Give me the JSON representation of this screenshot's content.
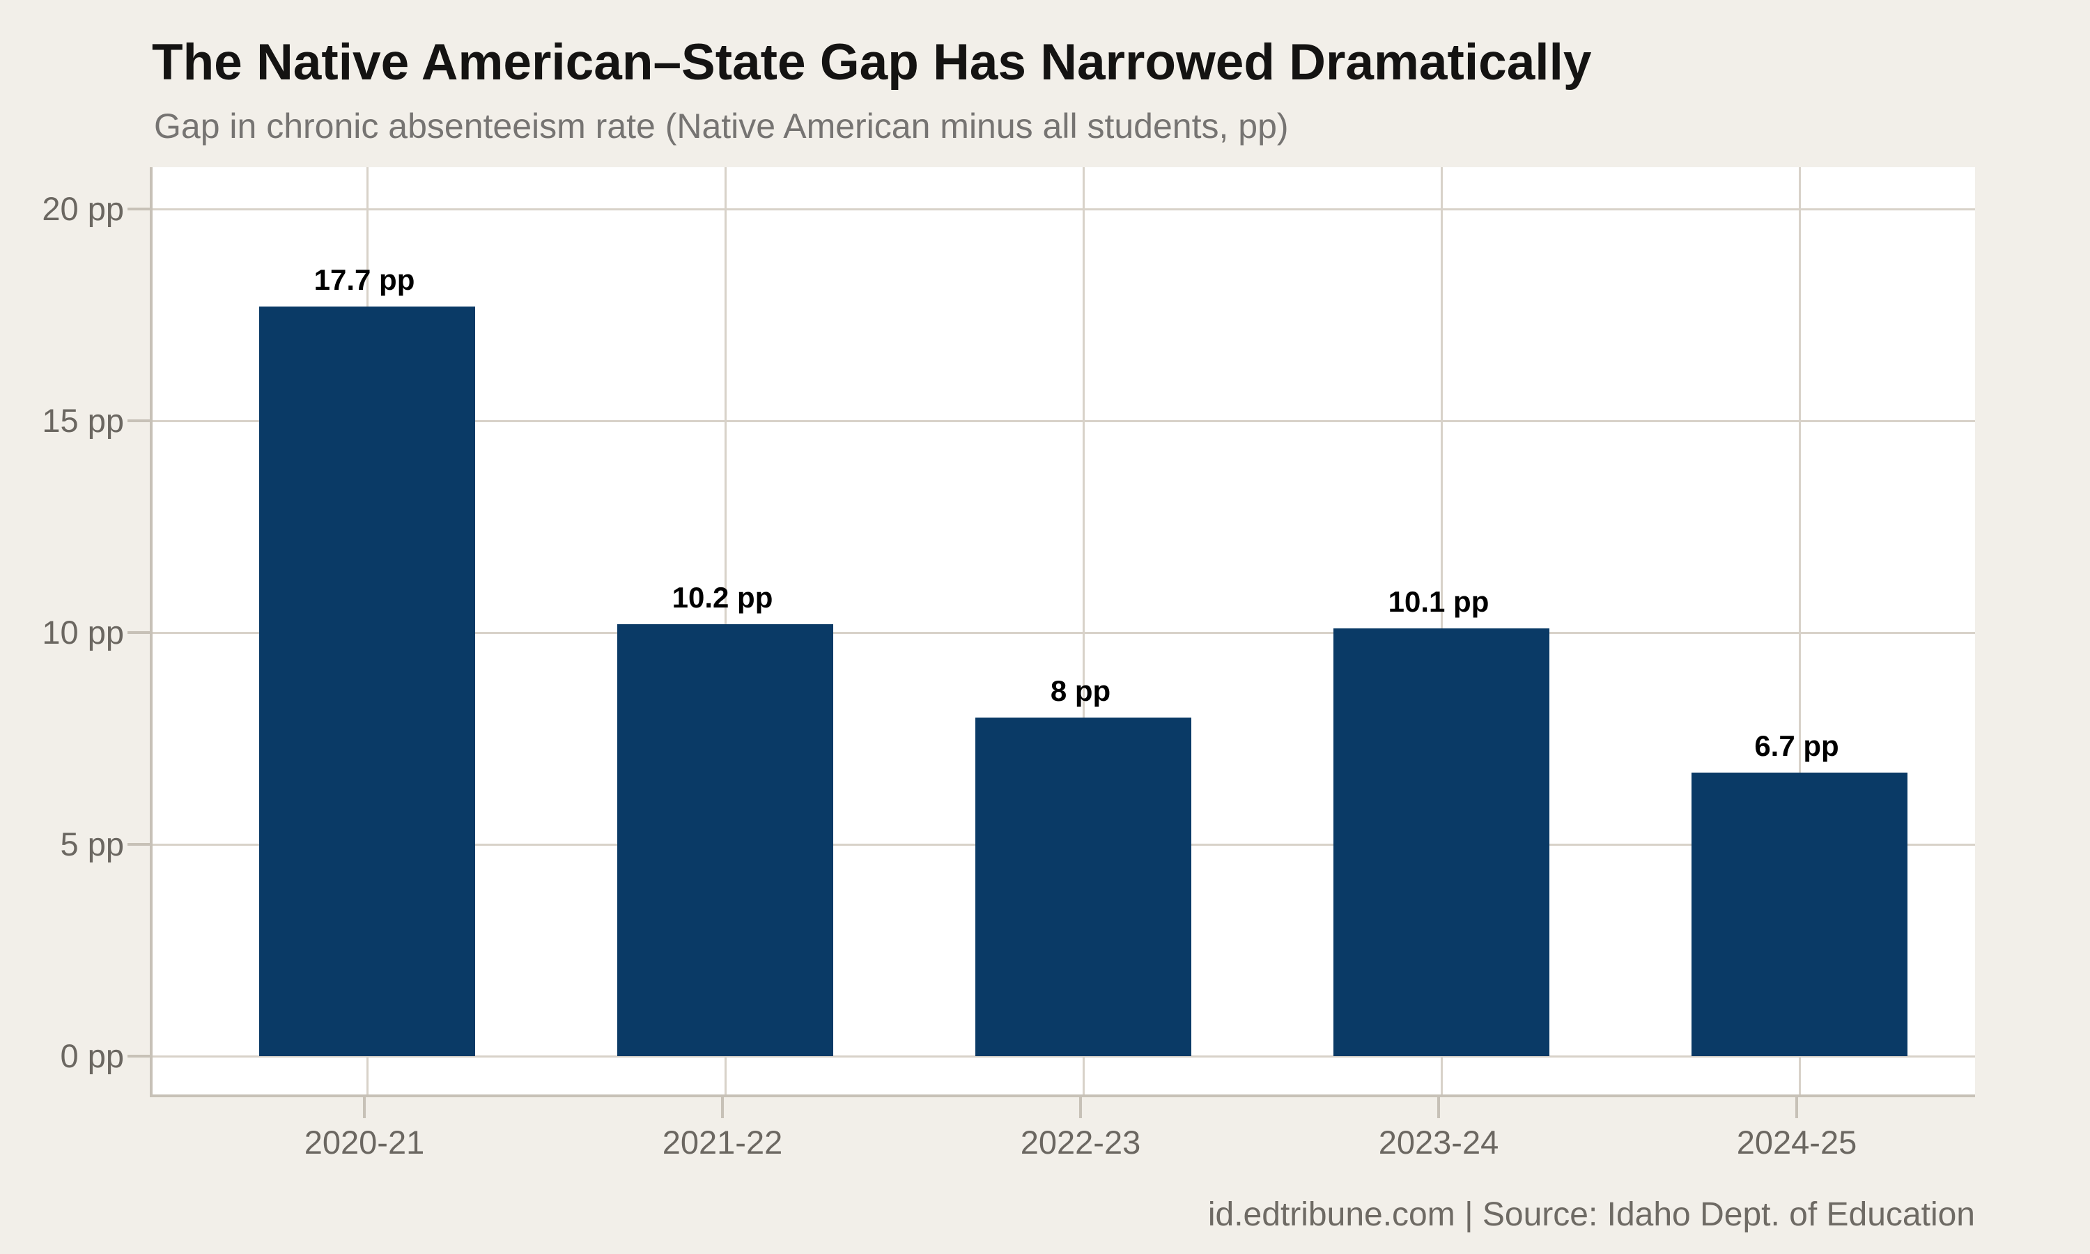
{
  "header": {
    "title": "The Native American–State Gap Has Narrowed Dramatically",
    "subtitle": "Gap in chronic absenteeism rate (Native American minus all students, pp)"
  },
  "footer": {
    "text": "id.edtribune.com | Source: Idaho Dept. of Education"
  },
  "colors": {
    "background": "#f2efe9",
    "plot_background": "#ffffff",
    "bar": "#0a3a66",
    "gridline": "#d8d2c9",
    "axis_line": "#c7c1b7",
    "title": "#141312",
    "subtitle": "#767472",
    "tick_label": "#6b6761",
    "bar_label": "#000000",
    "footer": "#6e6a64"
  },
  "chart_data": {
    "type": "bar",
    "title": "The Native American–State Gap Has Narrowed Dramatically",
    "subtitle": "Gap in chronic absenteeism rate (Native American minus all students, pp)",
    "categories": [
      "2020-21",
      "2021-22",
      "2022-23",
      "2023-24",
      "2024-25"
    ],
    "values": [
      17.7,
      10.2,
      8,
      10.1,
      6.7
    ],
    "bar_labels": [
      "17.7 pp",
      "10.2 pp",
      "8 pp",
      "10.1 pp",
      "6.7 pp"
    ],
    "unit": "pp",
    "xlabel": "",
    "ylabel": "",
    "ylim": [
      -1,
      21
    ],
    "yticks": [
      {
        "value": 0,
        "label": "0 pp"
      },
      {
        "value": 5,
        "label": "5 pp"
      },
      {
        "value": 10,
        "label": "10 pp"
      },
      {
        "value": 15,
        "label": "15 pp"
      },
      {
        "value": 20,
        "label": "20 pp"
      }
    ],
    "grid": "horizontal-and-vertical",
    "legend": "none",
    "bar_color": "#0a3a66"
  }
}
